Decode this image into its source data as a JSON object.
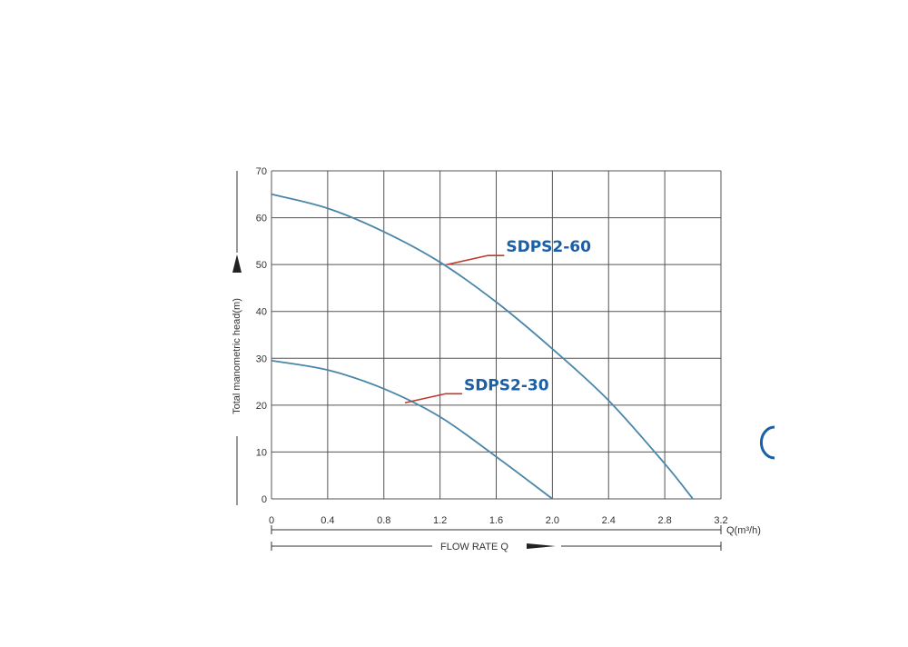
{
  "chart_data": {
    "type": "line",
    "title": "",
    "xlabel": "FLOW RATE Q",
    "x_unit_label": "Q(m³/h)",
    "ylabel": "Total manometric head(m)",
    "xlim": [
      0,
      3.2
    ],
    "ylim": [
      0,
      70
    ],
    "x_ticks": [
      "0",
      "0.4",
      "0.8",
      "1.2",
      "1.6",
      "2.0",
      "2.4",
      "2.8",
      "3.2"
    ],
    "y_ticks": [
      "0",
      "10",
      "20",
      "30",
      "40",
      "50",
      "60",
      "70"
    ],
    "grid": true,
    "colors": {
      "curve": "#4a86a8",
      "label": "#1a5fa8",
      "leader": "#c0392b",
      "grid": "#555555"
    },
    "series": [
      {
        "name": "SDPS2-60",
        "x": [
          0,
          0.4,
          0.8,
          1.2,
          1.6,
          2.0,
          2.4,
          2.8,
          3.0
        ],
        "y": [
          65,
          62,
          57,
          50.5,
          42,
          32,
          21,
          7.5,
          0
        ],
        "label_anchor": [
          1.25,
          50
        ]
      },
      {
        "name": "SDPS2-30",
        "x": [
          0,
          0.4,
          0.8,
          1.2,
          1.6,
          2.0
        ],
        "y": [
          29.5,
          27.5,
          23.5,
          17.5,
          9,
          0
        ],
        "label_anchor": [
          0.95,
          20.5
        ]
      }
    ]
  }
}
